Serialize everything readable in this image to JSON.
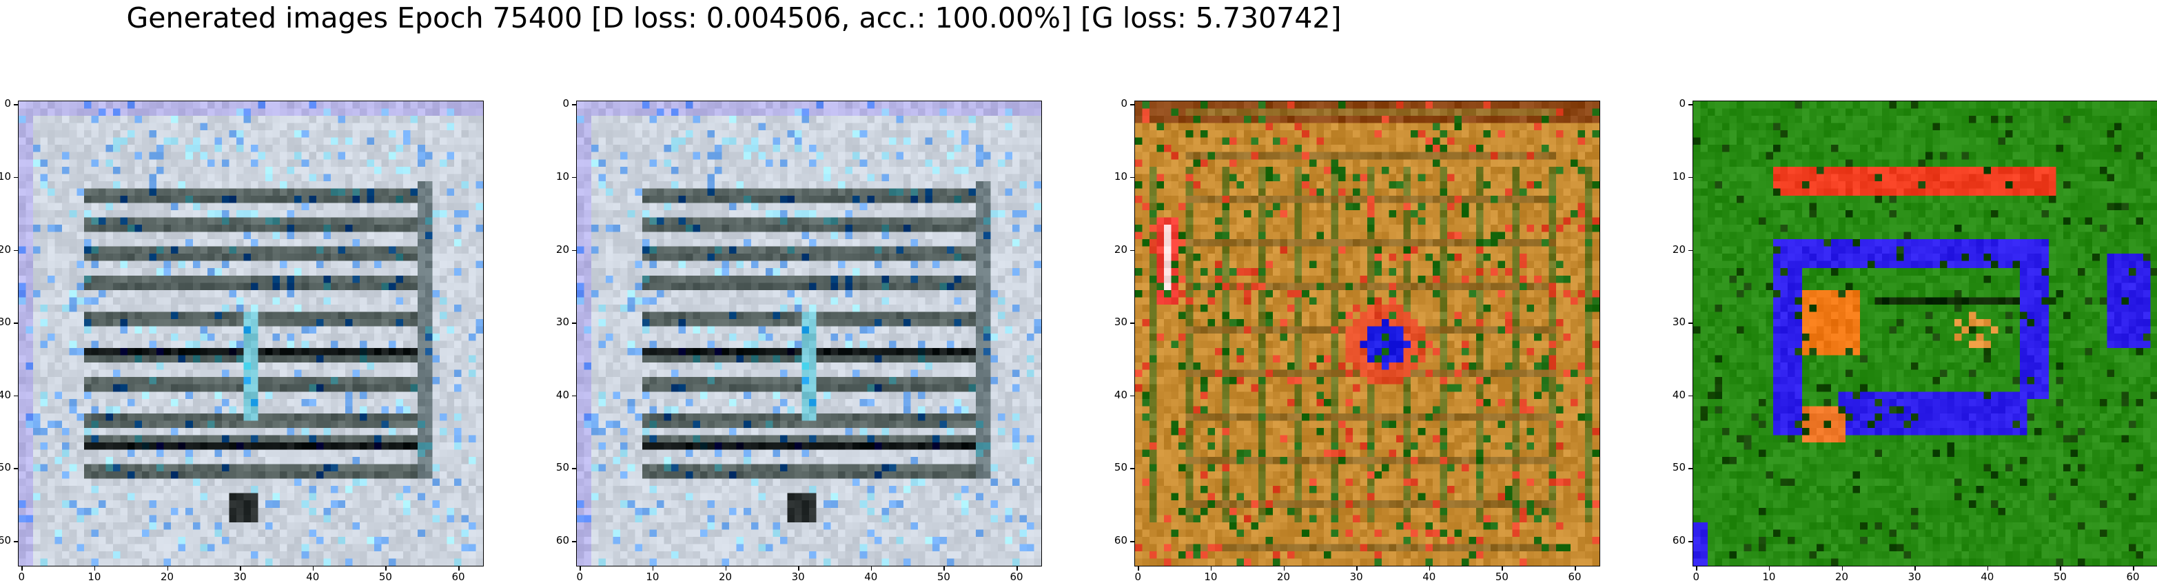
{
  "figure": {
    "title": "Generated images Epoch 75400 [D loss: 0.004506, acc.: 100.00%] [G loss: 5.730742]"
  },
  "panels": [
    {
      "name": "generated-image-1",
      "palette": "pale-gray-blue"
    },
    {
      "name": "generated-image-2",
      "palette": "pale-gray-blue"
    },
    {
      "name": "generated-image-3",
      "palette": "orange-olive"
    },
    {
      "name": "generated-image-4",
      "palette": "green-red-blue"
    }
  ],
  "axes": {
    "x_ticks": [
      "0",
      "10",
      "20",
      "30",
      "40",
      "50",
      "60"
    ],
    "y_ticks": [
      "0",
      "10",
      "20",
      "30",
      "40",
      "50",
      "60"
    ],
    "pixel_range": [
      0,
      63
    ]
  }
}
